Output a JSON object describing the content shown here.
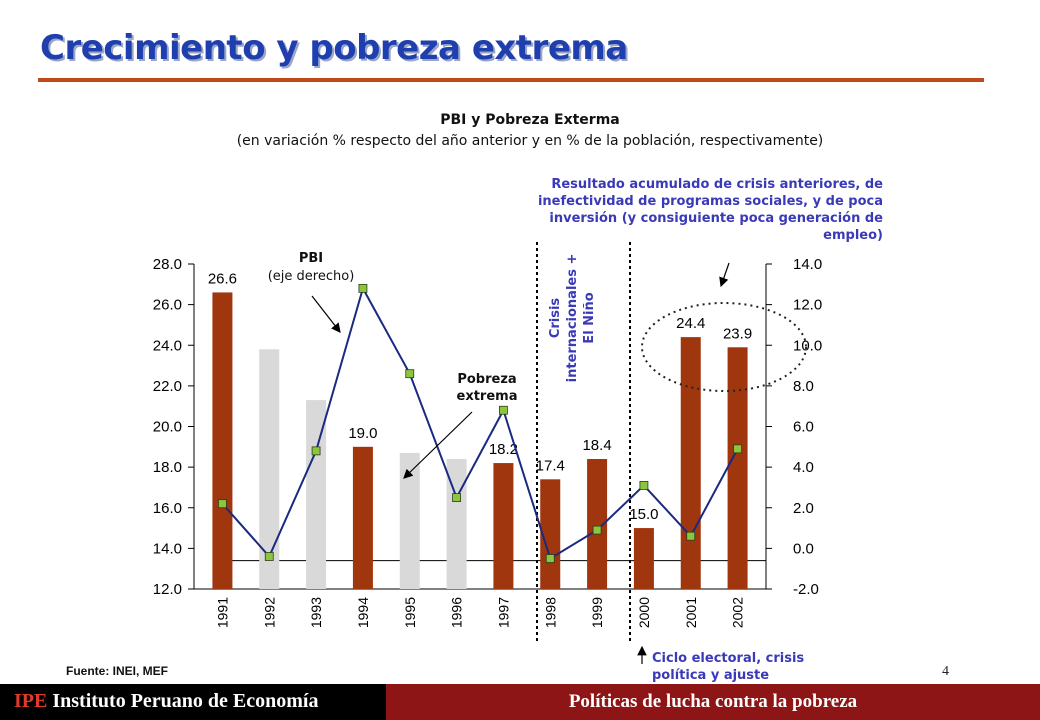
{
  "slide": {
    "title": "Crecimiento y pobreza extrema",
    "source": "Fuente: INEI, MEF",
    "page_number": "4",
    "footer_brand_acronym": "IPE",
    "footer_brand_name": "Instituto Peruano de Economía",
    "footer_section": "Políticas de lucha contra la pobreza",
    "colors": {
      "title": "#1f3fae",
      "title_rule": "#c04a1a",
      "bar_highlight": "#a0360e",
      "bar_muted": "#d9d9d9",
      "line": "#1b2a80",
      "marker": "#8cc63f",
      "annotation_blue": "#3a3ab8",
      "footer_dark": "#000000",
      "footer_red": "#8e1515"
    }
  },
  "chart_data": {
    "type": "bar",
    "title": "PBI y Pobreza Exterma",
    "subtitle": "(en variación % respecto del año anterior y en % de la población, respectivamente)",
    "categories": [
      "1991",
      "1992",
      "1993",
      "1994",
      "1995",
      "1996",
      "1997",
      "1998",
      "1999",
      "2000",
      "2001",
      "2002"
    ],
    "series": [
      {
        "values": [
          26.6,
          23.8,
          21.3,
          19.0,
          18.7,
          18.4,
          18.2,
          17.4,
          18.4,
          15.0,
          24.4,
          23.9
        ],
        "axis": "left",
        "highlighted": [
          true,
          false,
          false,
          true,
          false,
          false,
          true,
          true,
          true,
          true,
          true,
          true
        ],
        "data_labels": [
          "26.6",
          "",
          "",
          "19.0",
          "",
          "",
          "18.2",
          "17.4",
          "18.4",
          "15.0",
          "24.4",
          "23.9"
        ]
      },
      {
        "type": "line",
        "values": [
          2.2,
          -0.4,
          4.8,
          12.8,
          8.6,
          2.5,
          6.8,
          -0.5,
          0.9,
          3.1,
          0.6,
          4.9
        ],
        "axis": "right"
      }
    ],
    "y_left": {
      "range": [
        12.0,
        28.0
      ],
      "ticks": [
        "12.0",
        "14.0",
        "16.0",
        "18.0",
        "20.0",
        "22.0",
        "24.0",
        "26.0",
        "28.0"
      ]
    },
    "y_right": {
      "range": [
        -2.0,
        14.0
      ],
      "ticks": [
        "-2.0",
        "0.0",
        "2.0",
        "4.0",
        "6.0",
        "8.0",
        "10.0",
        "12.0",
        "14.0"
      ]
    },
    "annotations": {
      "pbi_label": "PBI",
      "pbi_sublabel": "(eje derecho)",
      "pobreza_label_1": "Pobreza",
      "pobreza_label_2": "extrema",
      "crisis_1": "Crisis",
      "crisis_2": "internacionales +",
      "crisis_3": "El Niño",
      "resultado_1": "Resultado acumulado de crisis anteriores, de",
      "resultado_2": "inefectividad de programas sociales, y de poca",
      "resultado_3": "inversión (y consiguiente poca generación de",
      "resultado_4": "empleo)",
      "ciclo_1": "Ciclo electoral, crisis",
      "ciclo_2": "política y ajuste"
    }
  }
}
